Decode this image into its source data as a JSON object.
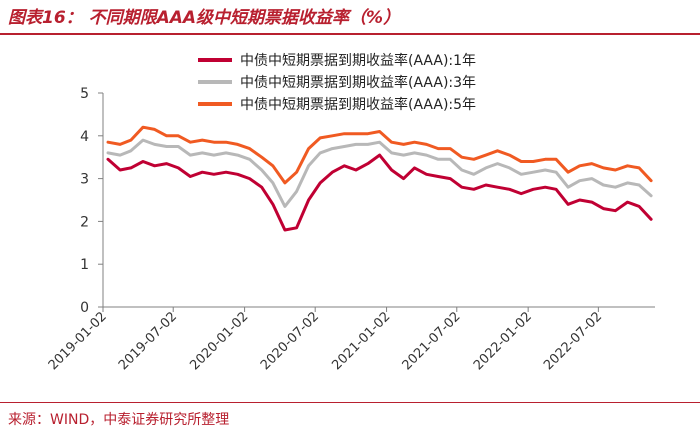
{
  "header": {
    "title": "图表16： 不同期限AAA级中短期票据收益率（%）"
  },
  "footer": {
    "source": "来源：WIND，中泰证券研究所整理"
  },
  "colors": {
    "accent": "#b8202f",
    "axis": "#808080"
  },
  "chart_data": {
    "type": "line",
    "title": "",
    "xlabel": "",
    "ylabel": "",
    "ylim": [
      0,
      5
    ],
    "yticks": [
      "0",
      "1",
      "2",
      "3",
      "4",
      "5"
    ],
    "xticks": [
      "2019-01-02",
      "2019-07-02",
      "2020-01-02",
      "2020-07-02",
      "2021-01-02",
      "2021-07-02",
      "2022-01-02",
      "2022-07-02"
    ],
    "grid": false,
    "legend_position": "top-right",
    "x": [
      "2019-01",
      "2019-02",
      "2019-03",
      "2019-04",
      "2019-05",
      "2019-06",
      "2019-07",
      "2019-08",
      "2019-09",
      "2019-10",
      "2019-11",
      "2019-12",
      "2020-01",
      "2020-02",
      "2020-03",
      "2020-04",
      "2020-05",
      "2020-06",
      "2020-07",
      "2020-08",
      "2020-09",
      "2020-10",
      "2020-11",
      "2020-12",
      "2021-01",
      "2021-02",
      "2021-03",
      "2021-04",
      "2021-05",
      "2021-06",
      "2021-07",
      "2021-08",
      "2021-09",
      "2021-10",
      "2021-11",
      "2021-12",
      "2022-01",
      "2022-02",
      "2022-03",
      "2022-04",
      "2022-05",
      "2022-06",
      "2022-07",
      "2022-08",
      "2022-09",
      "2022-10",
      "2022-11"
    ],
    "series": [
      {
        "name": "中债中短期票据到期收益率(AAA):1年",
        "color": "#c00033",
        "values": [
          3.45,
          3.2,
          3.25,
          3.4,
          3.3,
          3.35,
          3.25,
          3.05,
          3.15,
          3.1,
          3.15,
          3.1,
          3.0,
          2.8,
          2.4,
          1.8,
          1.85,
          2.5,
          2.9,
          3.15,
          3.3,
          3.2,
          3.35,
          3.55,
          3.2,
          3.0,
          3.25,
          3.1,
          3.05,
          3.0,
          2.8,
          2.75,
          2.85,
          2.8,
          2.75,
          2.65,
          2.75,
          2.8,
          2.75,
          2.4,
          2.5,
          2.45,
          2.3,
          2.25,
          2.45,
          2.35,
          2.05
        ]
      },
      {
        "name": "中债中短期票据到期收益率(AAA):3年",
        "color": "#b8b8b8",
        "values": [
          3.6,
          3.55,
          3.65,
          3.9,
          3.8,
          3.75,
          3.75,
          3.55,
          3.6,
          3.55,
          3.6,
          3.55,
          3.45,
          3.2,
          2.9,
          2.35,
          2.7,
          3.3,
          3.6,
          3.7,
          3.75,
          3.8,
          3.8,
          3.85,
          3.6,
          3.55,
          3.6,
          3.55,
          3.45,
          3.45,
          3.2,
          3.1,
          3.25,
          3.35,
          3.25,
          3.1,
          3.15,
          3.2,
          3.15,
          2.8,
          2.95,
          3.0,
          2.85,
          2.8,
          2.9,
          2.85,
          2.6
        ]
      },
      {
        "name": "中债中短期票据到期收益率(AAA):5年",
        "color": "#f05a22",
        "values": [
          3.85,
          3.8,
          3.9,
          4.2,
          4.15,
          4.0,
          4.0,
          3.85,
          3.9,
          3.85,
          3.85,
          3.8,
          3.7,
          3.5,
          3.3,
          2.9,
          3.15,
          3.7,
          3.95,
          4.0,
          4.05,
          4.05,
          4.05,
          4.1,
          3.85,
          3.8,
          3.85,
          3.8,
          3.7,
          3.7,
          3.5,
          3.45,
          3.55,
          3.65,
          3.55,
          3.4,
          3.4,
          3.45,
          3.45,
          3.15,
          3.3,
          3.35,
          3.25,
          3.2,
          3.3,
          3.25,
          2.95
        ]
      }
    ]
  }
}
